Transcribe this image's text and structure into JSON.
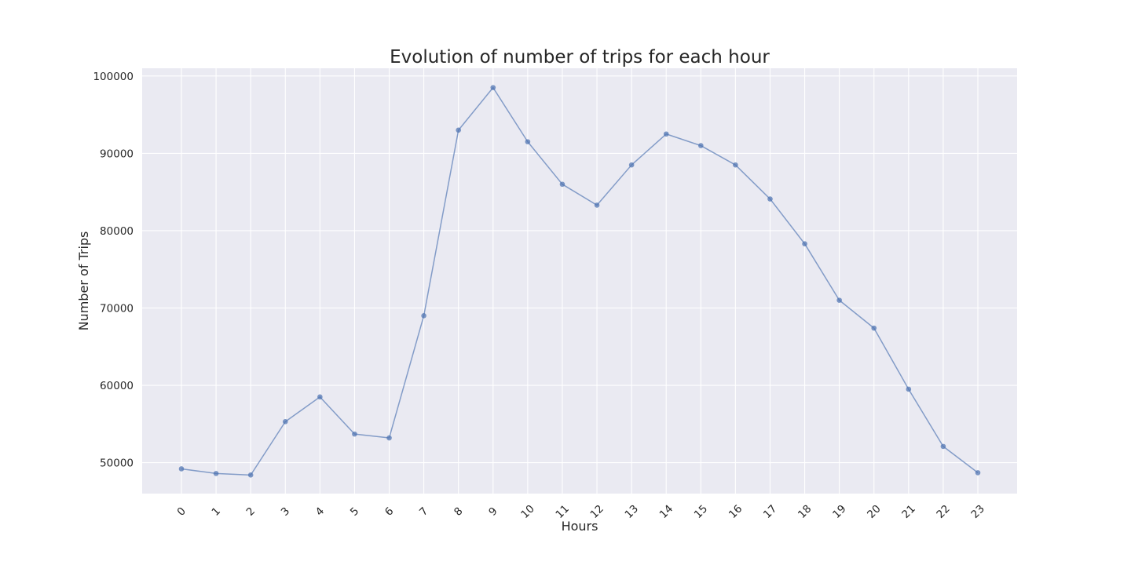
{
  "chart_data": {
    "type": "line",
    "title": "Evolution of number of trips for each hour",
    "xlabel": "Hours",
    "ylabel": "Number of Trips",
    "x": [
      "0",
      "1",
      "2",
      "3",
      "4",
      "5",
      "6",
      "7",
      "8",
      "9",
      "10",
      "11",
      "12",
      "13",
      "14",
      "15",
      "16",
      "17",
      "18",
      "19",
      "20",
      "21",
      "22",
      "23"
    ],
    "values": [
      49200,
      48600,
      48400,
      55300,
      58500,
      53700,
      53200,
      69000,
      93000,
      98500,
      91500,
      86000,
      83300,
      88500,
      92500,
      91000,
      88500,
      84100,
      78300,
      71000,
      67400,
      59500,
      52100,
      48700
    ],
    "ylim": [
      46000,
      101000
    ],
    "yticks": [
      50000,
      60000,
      70000,
      80000,
      90000,
      100000
    ],
    "ytick_labels": [
      "50000",
      "60000",
      "70000",
      "80000",
      "90000",
      "100000"
    ],
    "grid": true,
    "style": {
      "background": "#eaeaf2",
      "grid_color": "#ffffff",
      "line_color": "#4c72b0",
      "marker_color": "#4c72b0"
    }
  }
}
